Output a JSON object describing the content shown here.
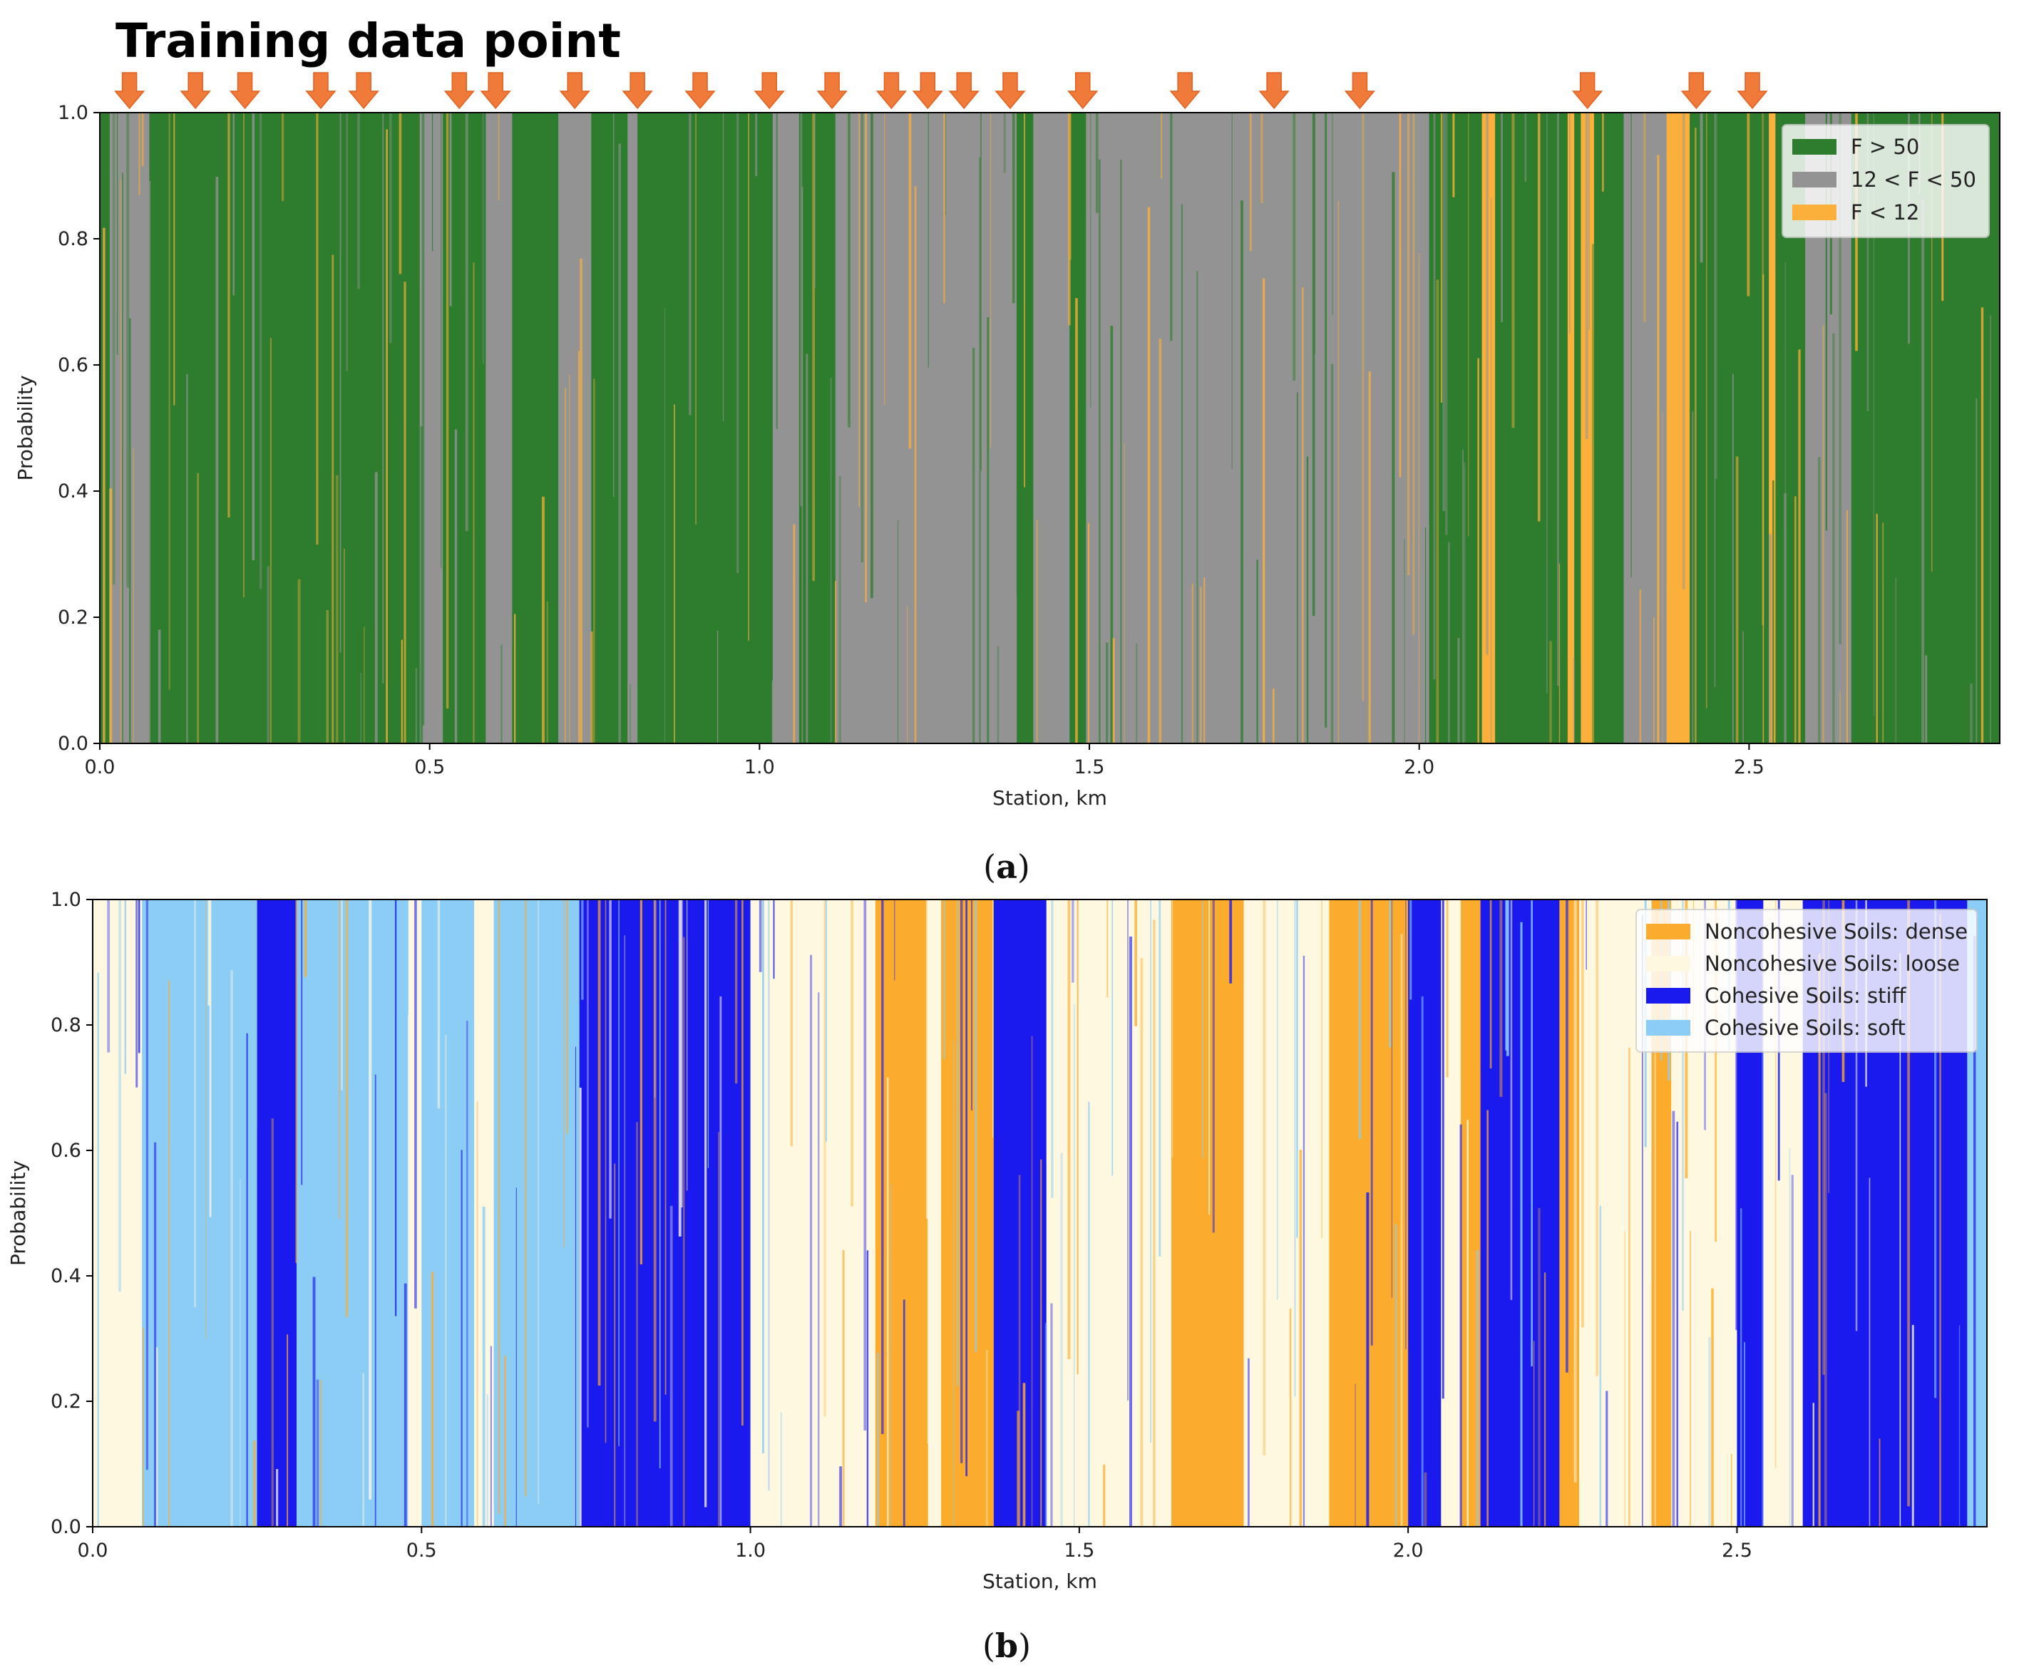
{
  "annotation": {
    "title": "Training data point",
    "arrow_stations_km": [
      0.045,
      0.145,
      0.22,
      0.335,
      0.4,
      0.545,
      0.6,
      0.72,
      0.815,
      0.91,
      1.015,
      1.11,
      1.2,
      1.255,
      1.31,
      1.38,
      1.49,
      1.645,
      1.78,
      1.91,
      2.255,
      2.42,
      2.505
    ],
    "arrow_color": "#f07a3a"
  },
  "chart_data": [
    {
      "id": "a",
      "type": "area",
      "subtype": "stacked-probability",
      "caption_open": "(",
      "caption_letter": "a",
      "caption_close": ")",
      "xlabel": "Station, km",
      "ylabel": "Probability",
      "xlim": [
        0,
        2.88
      ],
      "ylim": [
        0,
        1
      ],
      "xticks": [
        "0.0",
        "0.5",
        "1.0",
        "1.5",
        "2.0",
        "2.5"
      ],
      "yticks": [
        "0.0",
        "0.2",
        "0.4",
        "0.6",
        "0.8",
        "1.0"
      ],
      "legend_position": "top-right",
      "series": [
        {
          "name": "F > 50",
          "color": "#2e7d2e"
        },
        {
          "name": "12 < F < 50",
          "color": "#939393"
        },
        {
          "name": "F < 12",
          "color": "#fbb03b"
        }
      ],
      "segments": [
        {
          "x0": 0.0,
          "x1": 0.015,
          "c": "F > 50"
        },
        {
          "x0": 0.015,
          "x1": 0.075,
          "c": "12 < F < 50"
        },
        {
          "x0": 0.075,
          "x1": 0.485,
          "c": "F > 50"
        },
        {
          "x0": 0.485,
          "x1": 0.52,
          "c": "12 < F < 50"
        },
        {
          "x0": 0.52,
          "x1": 0.585,
          "c": "F > 50"
        },
        {
          "x0": 0.585,
          "x1": 0.625,
          "c": "12 < F < 50"
        },
        {
          "x0": 0.625,
          "x1": 0.695,
          "c": "F > 50"
        },
        {
          "x0": 0.695,
          "x1": 0.745,
          "c": "12 < F < 50"
        },
        {
          "x0": 0.745,
          "x1": 0.8,
          "c": "F > 50"
        },
        {
          "x0": 0.8,
          "x1": 0.815,
          "c": "12 < F < 50"
        },
        {
          "x0": 0.815,
          "x1": 1.02,
          "c": "F > 50"
        },
        {
          "x0": 1.02,
          "x1": 1.06,
          "c": "12 < F < 50"
        },
        {
          "x0": 1.06,
          "x1": 1.115,
          "c": "F > 50"
        },
        {
          "x0": 1.115,
          "x1": 1.39,
          "c": "12 < F < 50"
        },
        {
          "x0": 1.39,
          "x1": 1.415,
          "c": "F > 50"
        },
        {
          "x0": 1.415,
          "x1": 1.47,
          "c": "12 < F < 50"
        },
        {
          "x0": 1.47,
          "x1": 1.495,
          "c": "F > 50"
        },
        {
          "x0": 1.495,
          "x1": 2.015,
          "c": "12 < F < 50"
        },
        {
          "x0": 2.015,
          "x1": 2.095,
          "c": "F > 50"
        },
        {
          "x0": 2.095,
          "x1": 2.115,
          "c": "F < 12"
        },
        {
          "x0": 2.115,
          "x1": 2.225,
          "c": "F > 50"
        },
        {
          "x0": 2.225,
          "x1": 2.235,
          "c": "F < 12"
        },
        {
          "x0": 2.235,
          "x1": 2.245,
          "c": "F > 50"
        },
        {
          "x0": 2.245,
          "x1": 2.265,
          "c": "F < 12"
        },
        {
          "x0": 2.265,
          "x1": 2.31,
          "c": "F > 50"
        },
        {
          "x0": 2.31,
          "x1": 2.375,
          "c": "12 < F < 50"
        },
        {
          "x0": 2.375,
          "x1": 2.41,
          "c": "F < 12"
        },
        {
          "x0": 2.41,
          "x1": 2.53,
          "c": "F > 50"
        },
        {
          "x0": 2.53,
          "x1": 2.54,
          "c": "F < 12"
        },
        {
          "x0": 2.54,
          "x1": 2.585,
          "c": "F > 50"
        },
        {
          "x0": 2.585,
          "x1": 2.655,
          "c": "12 < F < 50"
        },
        {
          "x0": 2.655,
          "x1": 2.88,
          "c": "F > 50"
        }
      ]
    },
    {
      "id": "b",
      "type": "area",
      "subtype": "stacked-probability",
      "caption_open": "(",
      "caption_letter": "b",
      "caption_close": ")",
      "xlabel": "Station, km",
      "ylabel": "Probability",
      "xlim": [
        0,
        2.88
      ],
      "ylim": [
        0,
        1
      ],
      "xticks": [
        "0.0",
        "0.5",
        "1.0",
        "1.5",
        "2.0",
        "2.5"
      ],
      "yticks": [
        "0.0",
        "0.2",
        "0.4",
        "0.6",
        "0.8",
        "1.0"
      ],
      "legend_position": "top-right",
      "series": [
        {
          "name": "Noncohesive Soils: dense",
          "color": "#fbac2c"
        },
        {
          "name": "Noncohesive Soils: loose",
          "color": "#fff8e0"
        },
        {
          "name": "Cohesive Soils: stiff",
          "color": "#1a1aee"
        },
        {
          "name": "Cohesive Soils: soft",
          "color": "#8ccdf5"
        }
      ],
      "segments": [
        {
          "x0": 0.0,
          "x1": 0.075,
          "c": "Noncohesive Soils: loose"
        },
        {
          "x0": 0.075,
          "x1": 0.25,
          "c": "Cohesive Soils: soft"
        },
        {
          "x0": 0.25,
          "x1": 0.31,
          "c": "Cohesive Soils: stiff"
        },
        {
          "x0": 0.31,
          "x1": 0.48,
          "c": "Cohesive Soils: soft"
        },
        {
          "x0": 0.48,
          "x1": 0.5,
          "c": "Noncohesive Soils: loose"
        },
        {
          "x0": 0.5,
          "x1": 0.58,
          "c": "Cohesive Soils: soft"
        },
        {
          "x0": 0.58,
          "x1": 0.61,
          "c": "Noncohesive Soils: loose"
        },
        {
          "x0": 0.61,
          "x1": 0.74,
          "c": "Cohesive Soils: soft"
        },
        {
          "x0": 0.74,
          "x1": 1.0,
          "c": "Cohesive Soils: stiff"
        },
        {
          "x0": 1.0,
          "x1": 1.19,
          "c": "Noncohesive Soils: loose"
        },
        {
          "x0": 1.19,
          "x1": 1.27,
          "c": "Noncohesive Soils: dense"
        },
        {
          "x0": 1.27,
          "x1": 1.29,
          "c": "Noncohesive Soils: loose"
        },
        {
          "x0": 1.29,
          "x1": 1.37,
          "c": "Noncohesive Soils: dense"
        },
        {
          "x0": 1.37,
          "x1": 1.45,
          "c": "Cohesive Soils: stiff"
        },
        {
          "x0": 1.45,
          "x1": 1.64,
          "c": "Noncohesive Soils: loose"
        },
        {
          "x0": 1.64,
          "x1": 1.75,
          "c": "Noncohesive Soils: dense"
        },
        {
          "x0": 1.75,
          "x1": 1.88,
          "c": "Noncohesive Soils: loose"
        },
        {
          "x0": 1.88,
          "x1": 2.0,
          "c": "Noncohesive Soils: dense"
        },
        {
          "x0": 2.0,
          "x1": 2.05,
          "c": "Cohesive Soils: stiff"
        },
        {
          "x0": 2.05,
          "x1": 2.08,
          "c": "Noncohesive Soils: loose"
        },
        {
          "x0": 2.08,
          "x1": 2.11,
          "c": "Noncohesive Soils: dense"
        },
        {
          "x0": 2.11,
          "x1": 2.23,
          "c": "Cohesive Soils: stiff"
        },
        {
          "x0": 2.23,
          "x1": 2.26,
          "c": "Noncohesive Soils: dense"
        },
        {
          "x0": 2.26,
          "x1": 2.37,
          "c": "Noncohesive Soils: loose"
        },
        {
          "x0": 2.37,
          "x1": 2.4,
          "c": "Noncohesive Soils: dense"
        },
        {
          "x0": 2.4,
          "x1": 2.5,
          "c": "Noncohesive Soils: loose"
        },
        {
          "x0": 2.5,
          "x1": 2.54,
          "c": "Cohesive Soils: stiff"
        },
        {
          "x0": 2.54,
          "x1": 2.6,
          "c": "Noncohesive Soils: loose"
        },
        {
          "x0": 2.6,
          "x1": 2.85,
          "c": "Cohesive Soils: stiff"
        },
        {
          "x0": 2.85,
          "x1": 2.88,
          "c": "Cohesive Soils: soft"
        }
      ]
    }
  ]
}
